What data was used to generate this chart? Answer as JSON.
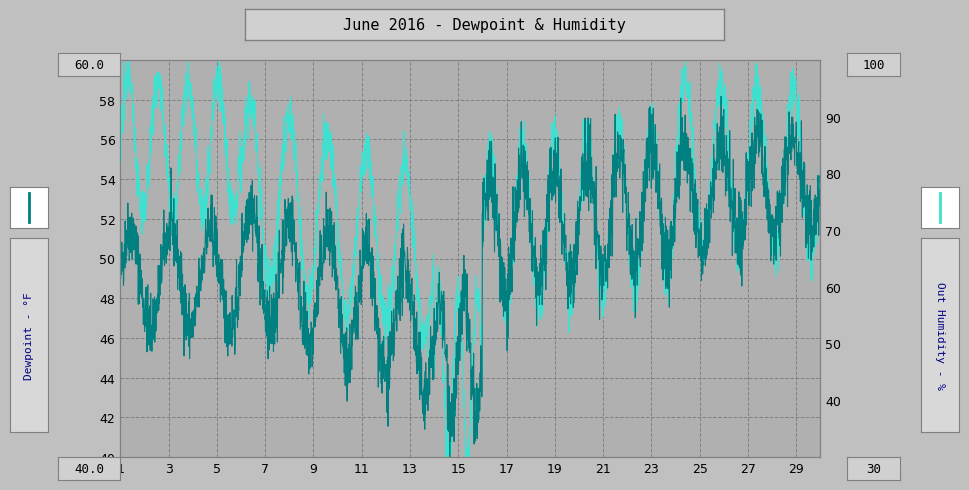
{
  "title": "June 2016 - Dewpoint & Humidity",
  "ylabel_left": "Dewpoint - °F",
  "ylabel_right": "Out Humidity - %",
  "xlabel": "",
  "ylim_left": [
    40.0,
    60.0
  ],
  "ylim_right": [
    30,
    100
  ],
  "xlim": [
    1,
    30
  ],
  "xticks": [
    1,
    3,
    5,
    7,
    9,
    11,
    13,
    15,
    17,
    19,
    21,
    23,
    25,
    27,
    29
  ],
  "yticks_left": [
    40.0,
    42.0,
    44.0,
    46.0,
    48.0,
    50.0,
    52.0,
    54.0,
    56.0,
    58.0,
    60.0
  ],
  "yticks_right": [
    30,
    40,
    50,
    60,
    70,
    80,
    90,
    100
  ],
  "bg_color": "#c0c0c0",
  "plot_bg_color": "#b0b0b0",
  "grid_color": "#808080",
  "dewpoint_color": "#008080",
  "humidity_color": "#40e0d0",
  "title_box_color": "#d0d0d0",
  "n_points": 2880
}
